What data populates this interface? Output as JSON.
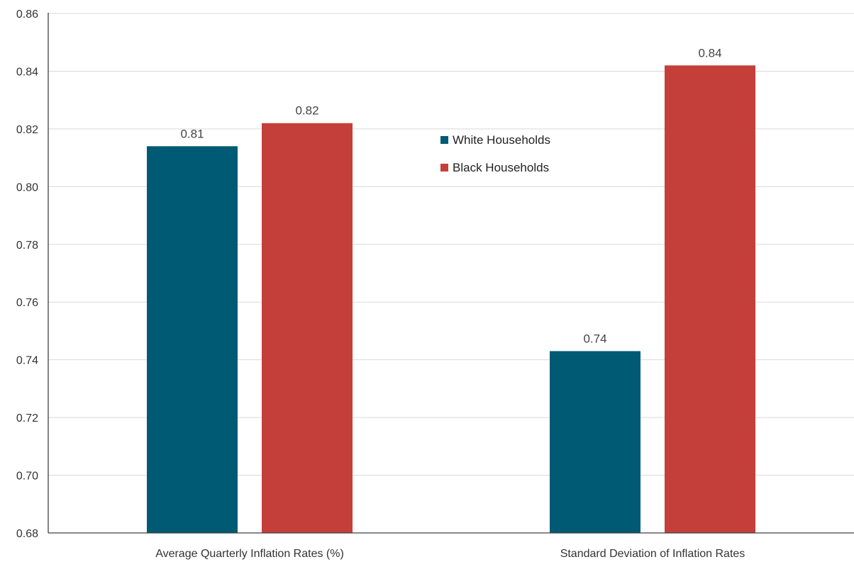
{
  "chart_data": {
    "type": "bar",
    "categories": [
      "Average Quarterly Inflation Rates (%)",
      "Standard Deviation of Inflation Rates"
    ],
    "series": [
      {
        "name": "White Households",
        "values": [
          0.814,
          0.743
        ],
        "labels": [
          "0.81",
          "0.74"
        ],
        "color": "#005a74"
      },
      {
        "name": "Black Households",
        "values": [
          0.822,
          0.842
        ],
        "labels": [
          "0.82",
          "0.84"
        ],
        "color": "#c53f3a"
      }
    ],
    "ylim": [
      0.68,
      0.86
    ],
    "yticks": [
      "0.68",
      "0.70",
      "0.72",
      "0.74",
      "0.76",
      "0.78",
      "0.80",
      "0.82",
      "0.84",
      "0.86"
    ],
    "grid": true,
    "legend_position": "top-center"
  }
}
